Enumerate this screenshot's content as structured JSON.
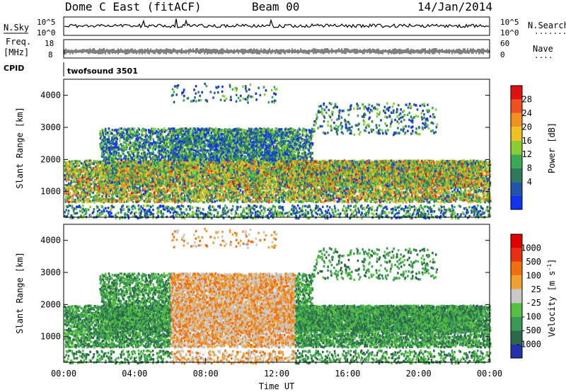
{
  "header": {
    "title_left": "Dome C East (fitACF)",
    "title_center": "Beam 00",
    "title_right": "14/Jan/2014"
  },
  "status_panels": {
    "nsky_label": "N.Sky",
    "nsky_ticks": [
      "10^5",
      "10^0"
    ],
    "nsky_right_ticks": [
      "10^5",
      "10^0"
    ],
    "nsearch_label": "N.Search",
    "nsearch_dots": "........",
    "freq_label_line1": "Freq.",
    "freq_label_line2": "[MHz]",
    "freq_ticks": [
      "18",
      "8"
    ],
    "nave_ticks": [
      "60",
      "0"
    ],
    "nave_label": "Nave",
    "nave_dots": "....",
    "cpid_label": "CPID",
    "cpid_value": "twofsound 3501"
  },
  "chart_data": [
    {
      "type": "heatmap",
      "name": "power",
      "ylabel": "Slant Range [km]",
      "yticks": [
        "1000",
        "2000",
        "3000",
        "4000"
      ],
      "ylim": [
        200,
        4500
      ],
      "xlim": [
        0,
        24
      ],
      "colorbar": {
        "label": "Power [dB]",
        "ticks": [
          "4",
          "8",
          "12",
          "16",
          "20",
          "24",
          "28"
        ],
        "colors": [
          "#1133ee",
          "#2255aa",
          "#2e7a5a",
          "#3aaa55",
          "#8ccc33",
          "#f0c020",
          "#f09020",
          "#f05020",
          "#e01010"
        ]
      }
    },
    {
      "type": "heatmap",
      "name": "velocity",
      "ylabel": "Slant Range [km]",
      "yticks": [
        "1000",
        "2000",
        "3000",
        "4000"
      ],
      "ylim": [
        200,
        4500
      ],
      "xlim": [
        0,
        24
      ],
      "xlabel": "Time UT",
      "xticks": [
        "00:00",
        "04:00",
        "08:00",
        "12:00",
        "16:00",
        "20:00",
        "00:00"
      ],
      "colorbar": {
        "label": "Velocity [m s^-1]",
        "ticks": [
          "1000",
          "500",
          "100",
          "25",
          "-25",
          "-100",
          "-500",
          "-1000"
        ],
        "colors": [
          "#2233aa",
          "#2a6a4a",
          "#3a9a55",
          "#55c040",
          "#c8c8c8",
          "#f0a030",
          "#f07010",
          "#e83010",
          "#e00000"
        ]
      }
    }
  ]
}
